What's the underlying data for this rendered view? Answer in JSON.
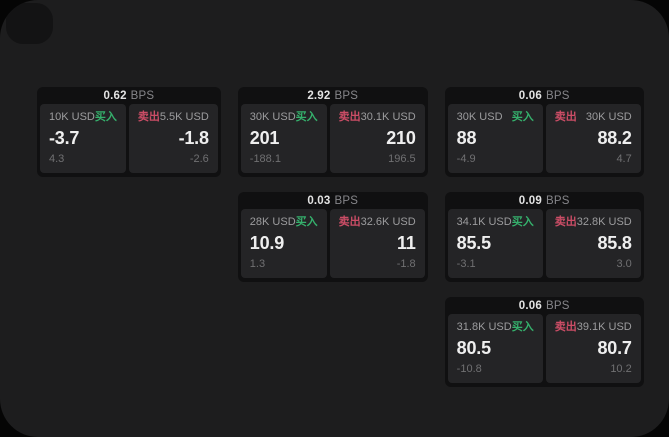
{
  "labels": {
    "bps_unit": "BPS",
    "buy": "买入",
    "sell": "卖出"
  },
  "colors": {
    "buy_green": "#35b06c",
    "sell_red": "#cb4d66"
  },
  "cards": [
    {
      "bps": "0.62",
      "buy": {
        "amount": "10K USD",
        "value": "-3.7",
        "sub": "4.3"
      },
      "sell": {
        "amount": "5.5K USD",
        "value": "-1.8",
        "sub": "-2.6"
      }
    },
    {
      "bps": "2.92",
      "buy": {
        "amount": "30K USD",
        "value": "201",
        "sub": "-188.1"
      },
      "sell": {
        "amount": "30.1K USD",
        "value": "210",
        "sub": "196.5"
      }
    },
    {
      "bps": "0.06",
      "buy": {
        "amount": "30K USD",
        "value": "88",
        "sub": "-4.9"
      },
      "sell": {
        "amount": "30K USD",
        "value": "88.2",
        "sub": "4.7"
      }
    },
    {
      "bps": "0.03",
      "buy": {
        "amount": "28K USD",
        "value": "10.9",
        "sub": "1.3"
      },
      "sell": {
        "amount": "32.6K USD",
        "value": "11",
        "sub": "-1.8"
      }
    },
    {
      "bps": "0.09",
      "buy": {
        "amount": "34.1K USD",
        "value": "85.5",
        "sub": "-3.1"
      },
      "sell": {
        "amount": "32.8K USD",
        "value": "85.8",
        "sub": "3.0"
      }
    },
    {
      "bps": "0.06",
      "buy": {
        "amount": "31.8K USD",
        "value": "80.5",
        "sub": "-10.8"
      },
      "sell": {
        "amount": "39.1K USD",
        "value": "80.7",
        "sub": "10.2"
      }
    }
  ]
}
